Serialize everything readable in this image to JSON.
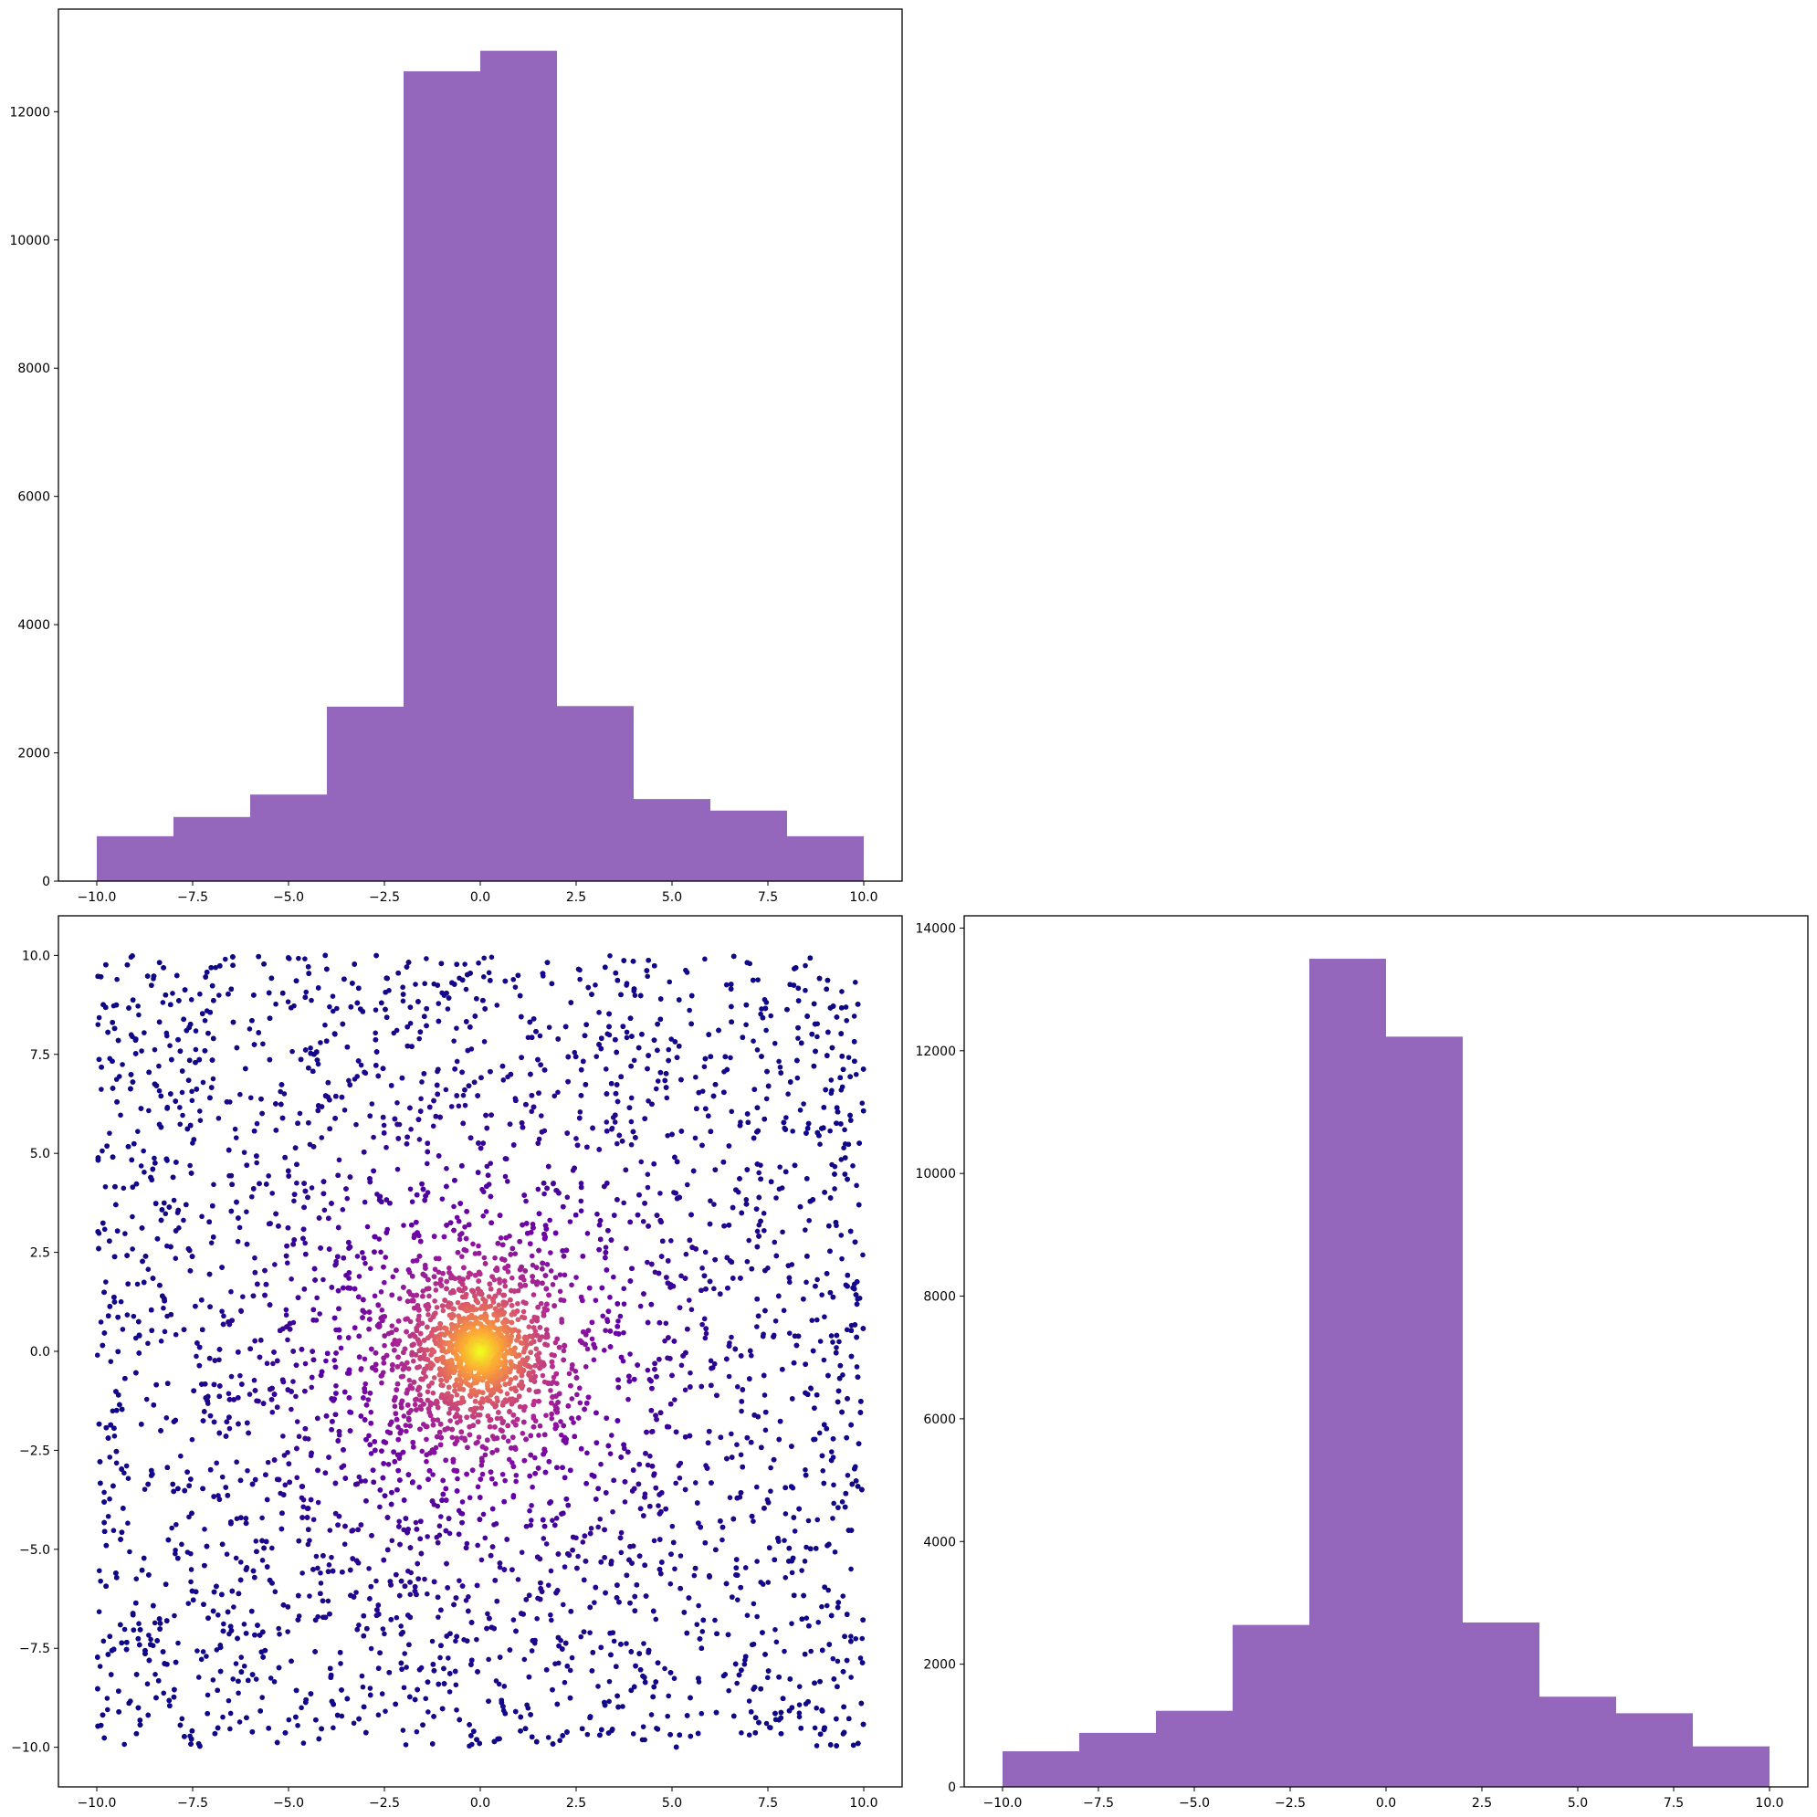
{
  "chart_data": [
    {
      "panel": "top-left",
      "type": "bar",
      "subtype": "histogram",
      "bin_edges": [
        -10,
        -8,
        -6,
        -4,
        -2,
        0,
        2,
        4,
        6,
        8,
        10
      ],
      "values": [
        700,
        1000,
        1350,
        2720,
        12630,
        12950,
        2730,
        1280,
        1100,
        700
      ],
      "xlim": [
        -11,
        11
      ],
      "ylim": [
        0,
        13600
      ],
      "xticks": [
        -10,
        -7.5,
        -5,
        -2.5,
        0,
        2.5,
        5,
        7.5,
        10
      ],
      "xtick_labels": [
        "−10.0",
        "−7.5",
        "−5.0",
        "−2.5",
        "0.0",
        "2.5",
        "5.0",
        "7.5",
        "10.0"
      ],
      "yticks": [
        0,
        2000,
        4000,
        6000,
        8000,
        10000,
        12000
      ],
      "ytick_labels": [
        "0",
        "2000",
        "4000",
        "6000",
        "8000",
        "10000",
        "12000"
      ],
      "bar_color": "#9467bd",
      "title": "",
      "xlabel": "",
      "ylabel": "",
      "grid": false
    },
    {
      "panel": "bottom-left",
      "type": "scatter",
      "description_points": "points uniformly spread over [-10,10]x[-10,10], denser near the origin; color mapped by distance from origin (plasma colormap: yellow at center, dark indigo at edges)",
      "colormap": [
        "#0d0887",
        "#6a00a8",
        "#b12a90",
        "#e16462",
        "#fca636",
        "#f0f921"
      ],
      "point_count": 12000,
      "xlim": [
        -11,
        11
      ],
      "ylim": [
        -11,
        11
      ],
      "xticks": [
        -10,
        -7.5,
        -5,
        -2.5,
        0,
        2.5,
        5,
        7.5,
        10
      ],
      "xtick_labels": [
        "−10.0",
        "−7.5",
        "−5.0",
        "−2.5",
        "0.0",
        "2.5",
        "5.0",
        "7.5",
        "10.0"
      ],
      "yticks": [
        10,
        7.5,
        5,
        2.5,
        0,
        -2.5,
        -5,
        -7.5,
        -10
      ],
      "ytick_labels": [
        "10.0",
        "7.5",
        "5.0",
        "2.5",
        "0.0",
        "−2.5",
        "−5.0",
        "−7.5",
        "−10.0"
      ],
      "title": "",
      "xlabel": "",
      "ylabel": "",
      "grid": false
    },
    {
      "panel": "bottom-right",
      "type": "bar",
      "subtype": "histogram",
      "bin_edges": [
        -10,
        -8,
        -6,
        -4,
        -2,
        0,
        2,
        4,
        6,
        8,
        10
      ],
      "values": [
        580,
        880,
        1240,
        2640,
        13500,
        12230,
        2680,
        1470,
        1200,
        660
      ],
      "xlim": [
        -11,
        11
      ],
      "ylim": [
        0,
        14200
      ],
      "xticks": [
        -10,
        -7.5,
        -5,
        -2.5,
        0,
        2.5,
        5,
        7.5,
        10
      ],
      "xtick_labels": [
        "−10.0",
        "−7.5",
        "−5.0",
        "−2.5",
        "0.0",
        "2.5",
        "5.0",
        "7.5",
        "10.0"
      ],
      "yticks": [
        0,
        2000,
        4000,
        6000,
        8000,
        10000,
        12000,
        14000
      ],
      "ytick_labels": [
        "0",
        "2000",
        "4000",
        "6000",
        "8000",
        "10000",
        "12000",
        "14000"
      ],
      "bar_color": "#9467bd",
      "title": "",
      "xlabel": "",
      "ylabel": "",
      "grid": false
    }
  ]
}
